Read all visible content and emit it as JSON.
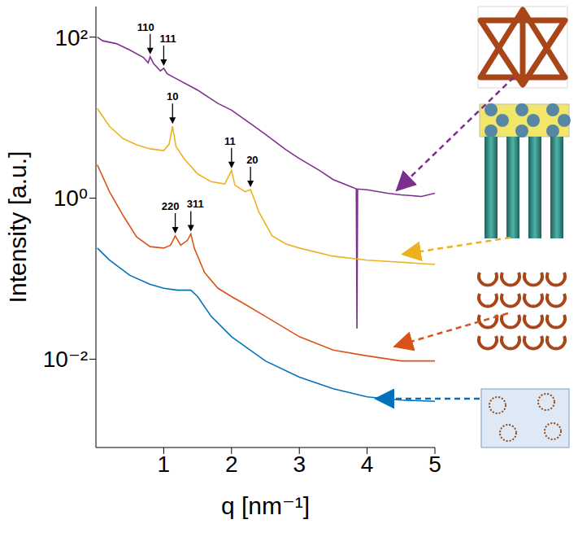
{
  "chart_data": {
    "type": "line",
    "log": "y",
    "grid": false,
    "x_label": "q [nm⁻¹]",
    "y_label": "Intensity [a.u.]",
    "xlim": [
      0,
      5
    ],
    "xticks": [
      1,
      2,
      3,
      4,
      5
    ],
    "ylim": [
      0.0008,
      240
    ],
    "yticks": [
      {
        "value": 100,
        "label": "10²"
      },
      {
        "value": 1,
        "label": "10⁰"
      },
      {
        "value": 0.01,
        "label": "10⁻²"
      }
    ],
    "series": [
      {
        "color": "#7e2f8e",
        "x": [
          0.02,
          0.1,
          0.3,
          0.5,
          0.7,
          0.77,
          0.8,
          0.85,
          0.95,
          1.0,
          1.05,
          1.2,
          1.5,
          1.8,
          2.0,
          2.3,
          2.5,
          2.8,
          3.0,
          3.3,
          3.5,
          3.8,
          3.84,
          3.85,
          3.86,
          4.0,
          4.3,
          4.5,
          4.8,
          5.0
        ],
        "values": [
          100,
          90,
          83,
          69,
          56,
          48,
          57,
          47,
          38,
          41,
          35,
          30,
          22,
          15,
          12.4,
          8.2,
          6.2,
          4.0,
          3.1,
          2.2,
          1.7,
          1.35,
          1.3,
          0.024,
          1.3,
          1.27,
          1.15,
          1.1,
          1.05,
          1.15
        ]
      },
      {
        "color": "#edb120",
        "x": [
          0.02,
          0.2,
          0.4,
          0.6,
          0.8,
          1.0,
          1.08,
          1.13,
          1.18,
          1.3,
          1.5,
          1.7,
          1.9,
          2.0,
          2.05,
          2.2,
          2.28,
          2.35,
          2.4,
          2.6,
          2.8,
          3.0,
          3.5,
          4.0,
          4.5,
          5.0
        ],
        "values": [
          13,
          7.8,
          5.5,
          4.6,
          4.1,
          3.9,
          4.7,
          7.8,
          4.4,
          3.1,
          2.0,
          1.6,
          1.5,
          2.2,
          1.45,
          1.2,
          1.28,
          0.9,
          0.68,
          0.34,
          0.27,
          0.24,
          0.19,
          0.17,
          0.16,
          0.15
        ]
      },
      {
        "color": "#d95319",
        "x": [
          0.02,
          0.2,
          0.4,
          0.6,
          0.8,
          1.0,
          1.1,
          1.17,
          1.25,
          1.35,
          1.4,
          1.45,
          1.6,
          1.8,
          2.0,
          2.2,
          2.5,
          3.0,
          3.5,
          4.0,
          4.5,
          5.0
        ],
        "values": [
          2.6,
          1.2,
          0.61,
          0.33,
          0.25,
          0.24,
          0.26,
          0.34,
          0.26,
          0.3,
          0.36,
          0.24,
          0.12,
          0.076,
          0.06,
          0.048,
          0.034,
          0.019,
          0.013,
          0.011,
          0.0095,
          0.0095
        ]
      },
      {
        "color": "#0072bd",
        "x": [
          0.02,
          0.2,
          0.5,
          0.8,
          1.0,
          1.2,
          1.4,
          1.5,
          1.7,
          2.0,
          2.5,
          3.0,
          3.5,
          4.0,
          4.5,
          5.0
        ],
        "values": [
          0.24,
          0.17,
          0.11,
          0.085,
          0.076,
          0.072,
          0.072,
          0.06,
          0.034,
          0.019,
          0.0095,
          0.006,
          0.0043,
          0.0034,
          0.0031,
          0.003
        ]
      }
    ],
    "annotations": [
      {
        "text": "110",
        "x": 0.8,
        "y": 57
      },
      {
        "text": "111",
        "x": 1.0,
        "y": 41
      },
      {
        "text": "10",
        "x": 1.13,
        "y": 7.8
      },
      {
        "text": "11",
        "x": 2.0,
        "y": 2.2
      },
      {
        "text": "20",
        "x": 2.28,
        "y": 1.28
      },
      {
        "text": "220",
        "x": 1.17,
        "y": 0.34
      },
      {
        "text": "311",
        "x": 1.4,
        "y": 0.36
      }
    ]
  }
}
